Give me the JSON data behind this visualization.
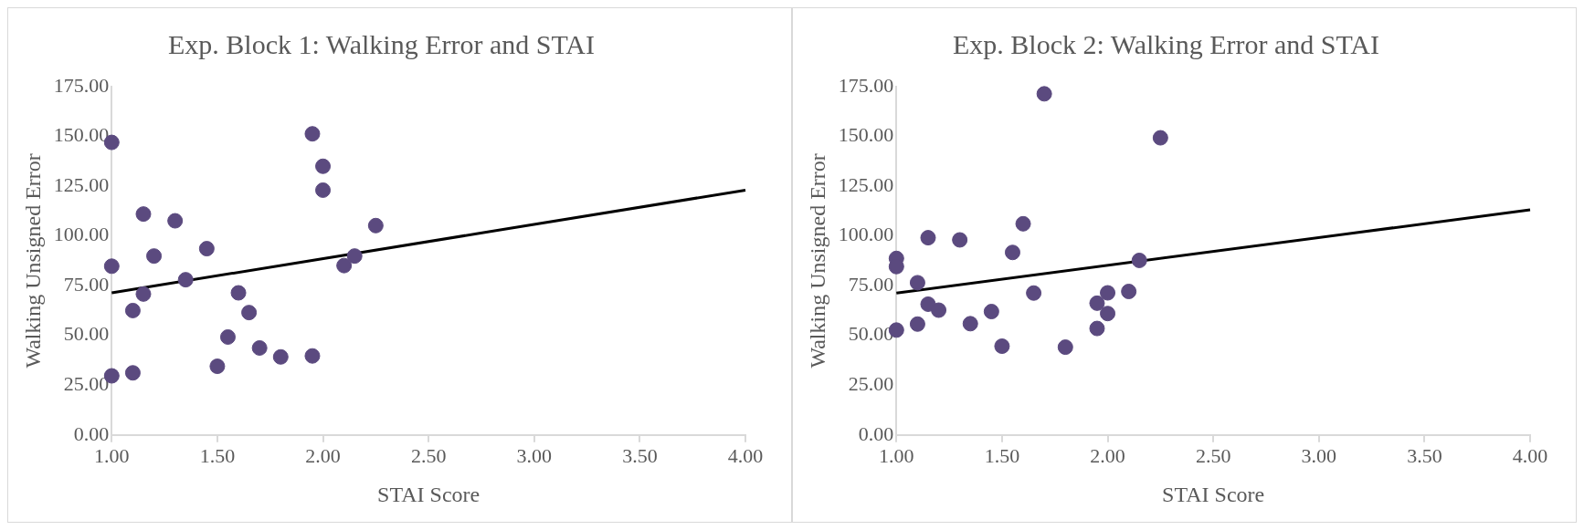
{
  "chart_data": [
    {
      "type": "scatter",
      "title": "Exp. Block 1: Walking Error and STAI",
      "xlabel": "STAI Score",
      "ylabel": "Walking Unsigned Error",
      "xlim": [
        1,
        4
      ],
      "xticks": [
        {
          "value": 1,
          "label": "1.00"
        },
        {
          "value": 1.5,
          "label": "1.50"
        },
        {
          "value": 2,
          "label": "2.00"
        },
        {
          "value": 2.5,
          "label": "2.50"
        },
        {
          "value": 3,
          "label": "3.00"
        },
        {
          "value": 3.5,
          "label": "3.50"
        },
        {
          "value": 4,
          "label": "4.00"
        }
      ],
      "ylim": [
        0,
        175
      ],
      "yticks": [
        {
          "value": 0,
          "label": "0.00"
        },
        {
          "value": 25,
          "label": "25.00"
        },
        {
          "value": 50,
          "label": "50.00"
        },
        {
          "value": 75,
          "label": "75.00"
        },
        {
          "value": 100,
          "label": "100.00"
        },
        {
          "value": 125,
          "label": "125.00"
        },
        {
          "value": 150,
          "label": "150.00"
        },
        {
          "value": 175,
          "label": "175.00"
        }
      ],
      "grid": false,
      "legend": false,
      "marker": "circle",
      "series": [
        {
          "color": "#5b4a7f",
          "x": [
            1.0,
            1.0,
            1.0,
            1.1,
            1.1,
            1.15,
            1.15,
            1.2,
            1.3,
            1.35,
            1.45,
            1.5,
            1.55,
            1.6,
            1.65,
            1.7,
            1.8,
            1.95,
            1.95,
            2.0,
            2.0,
            2.1,
            2.15,
            2.25
          ],
          "values": [
            147,
            84.8,
            29.7,
            62.5,
            31.2,
            111,
            70.8,
            89.9,
            107.6,
            78,
            93.6,
            34.5,
            49.2,
            71.4,
            61.5,
            43.7,
            39.2,
            151.3,
            39.7,
            135,
            123,
            85.1,
            89.9,
            105.2
          ]
        },
        {
          "type": "line",
          "color": "#000000",
          "marker": "none",
          "x": [
            1,
            4
          ],
          "values": [
            71.4,
            123
          ]
        }
      ]
    },
    {
      "type": "scatter",
      "title": "Exp. Block 2: Walking Error and STAI",
      "xlabel": "STAI Score",
      "ylabel": "Walking Unsigned Error",
      "xlim": [
        1,
        4
      ],
      "xticks": [
        {
          "value": 1,
          "label": "1.00"
        },
        {
          "value": 1.5,
          "label": "1.50"
        },
        {
          "value": 2,
          "label": "2.00"
        },
        {
          "value": 2.5,
          "label": "2.50"
        },
        {
          "value": 3,
          "label": "3.00"
        },
        {
          "value": 3.5,
          "label": "3.50"
        },
        {
          "value": 4,
          "label": "4.00"
        }
      ],
      "ylim": [
        0,
        175
      ],
      "yticks": [
        {
          "value": 0,
          "label": "0.00"
        },
        {
          "value": 25,
          "label": "25.00"
        },
        {
          "value": 50,
          "label": "50.00"
        },
        {
          "value": 75,
          "label": "75.00"
        },
        {
          "value": 100,
          "label": "100.00"
        },
        {
          "value": 125,
          "label": "125.00"
        },
        {
          "value": 150,
          "label": "150.00"
        },
        {
          "value": 175,
          "label": "175.00"
        }
      ],
      "grid": false,
      "legend": false,
      "marker": "circle",
      "series": [
        {
          "color": "#5b4a7f",
          "x": [
            1.0,
            1.0,
            1.0,
            1.1,
            1.1,
            1.15,
            1.15,
            1.2,
            1.3,
            1.35,
            1.45,
            1.5,
            1.55,
            1.6,
            1.65,
            1.7,
            1.8,
            1.95,
            1.95,
            2.0,
            2.0,
            2.1,
            2.15,
            2.25
          ],
          "values": [
            88.7,
            84.6,
            52.7,
            76.5,
            55.7,
            99.1,
            65.7,
            62.7,
            98,
            55.9,
            62,
            44.6,
            91.7,
            106.1,
            71.3,
            171.4,
            44.1,
            66.2,
            53.5,
            71.4,
            61,
            72.1,
            87.7,
            149.3
          ]
        },
        {
          "type": "line",
          "color": "#000000",
          "marker": "none",
          "x": [
            1,
            4
          ],
          "values": [
            71.3,
            113.1
          ]
        }
      ]
    }
  ]
}
